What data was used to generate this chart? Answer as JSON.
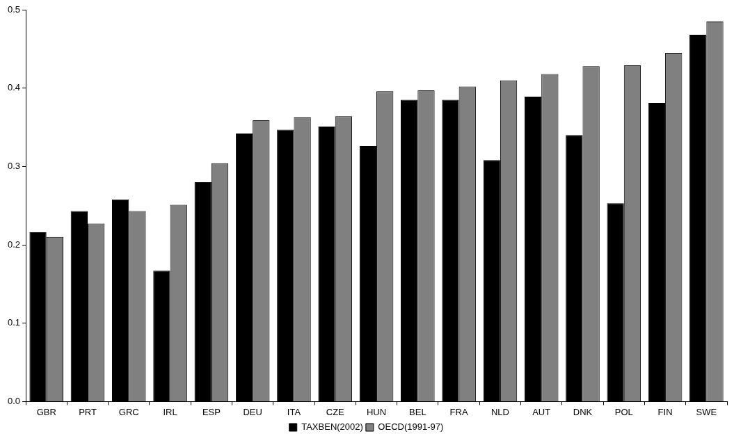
{
  "chart_data": {
    "type": "bar",
    "categories": [
      "GBR",
      "PRT",
      "GRC",
      "IRL",
      "ESP",
      "DEU",
      "ITA",
      "CZE",
      "HUN",
      "BEL",
      "FRA",
      "NLD",
      "AUT",
      "DNK",
      "POL",
      "FIN",
      "SWE"
    ],
    "series": [
      {
        "name": "TAXBEN(2002)",
        "color": "#000000",
        "values": [
          0.216,
          0.243,
          0.258,
          0.167,
          0.28,
          0.342,
          0.347,
          0.351,
          0.326,
          0.385,
          0.385,
          0.308,
          0.389,
          0.34,
          0.253,
          0.381,
          0.468
        ]
      },
      {
        "name": "OECD(1991-97)",
        "color": "#808080",
        "values": [
          0.21,
          0.227,
          0.243,
          0.251,
          0.304,
          0.359,
          0.363,
          0.364,
          0.396,
          0.397,
          0.402,
          0.41,
          0.418,
          0.428,
          0.429,
          0.445,
          0.485
        ]
      }
    ],
    "ylim": [
      0,
      0.5
    ],
    "yticks": [
      {
        "value": 0,
        "label": "0.0"
      },
      {
        "value": 0.1,
        "label": "0.1"
      },
      {
        "value": 0.2,
        "label": "0.2"
      },
      {
        "value": 0.3,
        "label": "0.3"
      },
      {
        "value": 0.4,
        "label": "0.4"
      },
      {
        "value": 0.5,
        "label": "0.5"
      }
    ],
    "grid": false,
    "legend": "bottom"
  }
}
